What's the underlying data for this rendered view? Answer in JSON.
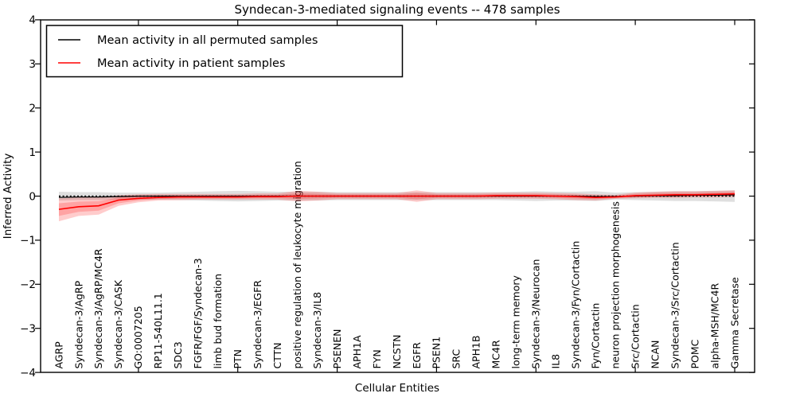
{
  "title": "Syndecan-3-mediated signaling events -- 478 samples",
  "legend": {
    "position": "upper left",
    "entries": [
      {
        "label": "Mean activity in all permuted samples",
        "color": "#000000"
      },
      {
        "label": "Mean activity in patient samples",
        "color": "#ff0000"
      }
    ]
  },
  "axes": {
    "xlabel": "Cellular Entities",
    "ylabel": "Inferred Activity",
    "ylim": [
      -4,
      4
    ],
    "ytick_labels": [
      "4",
      "3",
      "2",
      "1",
      "0",
      "−1",
      "−2",
      "−3",
      "−4"
    ],
    "ytick_values": [
      4,
      3,
      2,
      1,
      0,
      -1,
      -2,
      -3,
      -4
    ]
  },
  "chart_data": {
    "type": "line",
    "title": "Syndecan-3-mediated signaling events -- 478 samples",
    "xlabel": "Cellular Entities",
    "ylabel": "Inferred Activity",
    "ylim": [
      -4,
      4
    ],
    "grid": false,
    "legend_position": "upper left",
    "major_xtick_indices": [
      4,
      9,
      14,
      19,
      24,
      29,
      34
    ],
    "categories": [
      "AGRP",
      "Syndecan-3/AgRP",
      "Syndecan-3/AgRP/MC4R",
      "Syndecan-3/CASK",
      "GO:0007205",
      "RP11-540L11.1",
      "SDC3",
      "FGFR/FGF/Syndecan-3",
      "limb bud formation",
      "PTN",
      "Syndecan-3/EGFR",
      "CTTN",
      "positive regulation of leukocyte migration",
      "Syndecan-3/IL8",
      "PSENEN",
      "APH1A",
      "FYN",
      "NCSTN",
      "EGFR",
      "PSEN1",
      "SRC",
      "APH1B",
      "MC4R",
      "long-term memory",
      "Syndecan-3/Neurocan",
      "IL8",
      "Syndecan-3/Fyn/Cortactin",
      "Fyn/Cortactin",
      "neuron projection morphogenesis",
      "Src/Cortactin",
      "NCAN",
      "Syndecan-3/Src/Cortactin",
      "POMC",
      "alpha-MSH/MC4R",
      "Gamma Secretase"
    ],
    "series": [
      {
        "name": "Mean activity in all permuted samples",
        "color": "#000000",
        "style": "solid, with dotted zero-reference line",
        "values": [
          -0.03,
          -0.02,
          -0.02,
          -0.01,
          0,
          0,
          0,
          0,
          0,
          0,
          0,
          0,
          0,
          0,
          0,
          0,
          0,
          0,
          0,
          0,
          0,
          0,
          0,
          0,
          0,
          0,
          0,
          -0.01,
          -0.01,
          0,
          0.01,
          0.01,
          0.02,
          0.02,
          0.03
        ]
      },
      {
        "name": "Mean activity in patient samples",
        "color": "#ff0000",
        "style": "solid",
        "values": [
          -0.3,
          -0.24,
          -0.22,
          -0.09,
          -0.05,
          -0.03,
          -0.02,
          -0.02,
          -0.02,
          -0.02,
          -0.01,
          -0.01,
          0.0,
          0.0,
          0.0,
          0.0,
          0.0,
          0.0,
          0.0,
          0.0,
          0.0,
          0.0,
          0.01,
          0.01,
          0.01,
          0.0,
          -0.01,
          -0.03,
          -0.02,
          0.01,
          0.02,
          0.03,
          0.03,
          0.04,
          0.05
        ]
      }
    ],
    "bands": [
      {
        "name": "permuted-samples-envelope",
        "color": "#888888",
        "opacity": 0.27,
        "lo": [
          -0.1,
          -0.09,
          -0.09,
          -0.08,
          -0.08,
          -0.08,
          -0.09,
          -0.1,
          -0.11,
          -0.12,
          -0.11,
          -0.1,
          -0.1,
          -0.1,
          -0.09,
          -0.09,
          -0.09,
          -0.09,
          -0.09,
          -0.09,
          -0.09,
          -0.09,
          -0.09,
          -0.1,
          -0.11,
          -0.1,
          -0.1,
          -0.11,
          -0.08,
          -0.09,
          -0.1,
          -0.11,
          -0.11,
          -0.12,
          -0.13
        ],
        "hi": [
          0.1,
          0.09,
          0.09,
          0.08,
          0.08,
          0.08,
          0.09,
          0.1,
          0.11,
          0.12,
          0.11,
          0.1,
          0.1,
          0.1,
          0.09,
          0.09,
          0.09,
          0.09,
          0.09,
          0.09,
          0.09,
          0.09,
          0.09,
          0.1,
          0.11,
          0.1,
          0.1,
          0.11,
          0.08,
          0.09,
          0.1,
          0.11,
          0.11,
          0.12,
          0.13
        ]
      },
      {
        "name": "patient-samples-envelope",
        "color": "#ff0000",
        "opacity": 0.2,
        "lo": [
          -0.57,
          -0.45,
          -0.42,
          -0.22,
          -0.14,
          -0.1,
          -0.09,
          -0.08,
          -0.08,
          -0.08,
          -0.08,
          -0.08,
          -0.12,
          -0.1,
          -0.07,
          -0.07,
          -0.07,
          -0.07,
          -0.13,
          -0.07,
          -0.07,
          -0.07,
          -0.06,
          -0.06,
          -0.06,
          -0.07,
          -0.09,
          -0.1,
          -0.06,
          -0.05,
          -0.04,
          -0.04,
          -0.03,
          -0.03,
          -0.02
        ],
        "hi": [
          -0.05,
          -0.03,
          -0.03,
          0.02,
          0.04,
          0.05,
          0.05,
          0.05,
          0.05,
          0.05,
          0.06,
          0.06,
          0.12,
          0.1,
          0.07,
          0.07,
          0.07,
          0.07,
          0.13,
          0.07,
          0.07,
          0.07,
          0.08,
          0.08,
          0.08,
          0.07,
          0.06,
          0.04,
          0.03,
          0.08,
          0.1,
          0.11,
          0.11,
          0.12,
          0.13
        ]
      }
    ]
  }
}
